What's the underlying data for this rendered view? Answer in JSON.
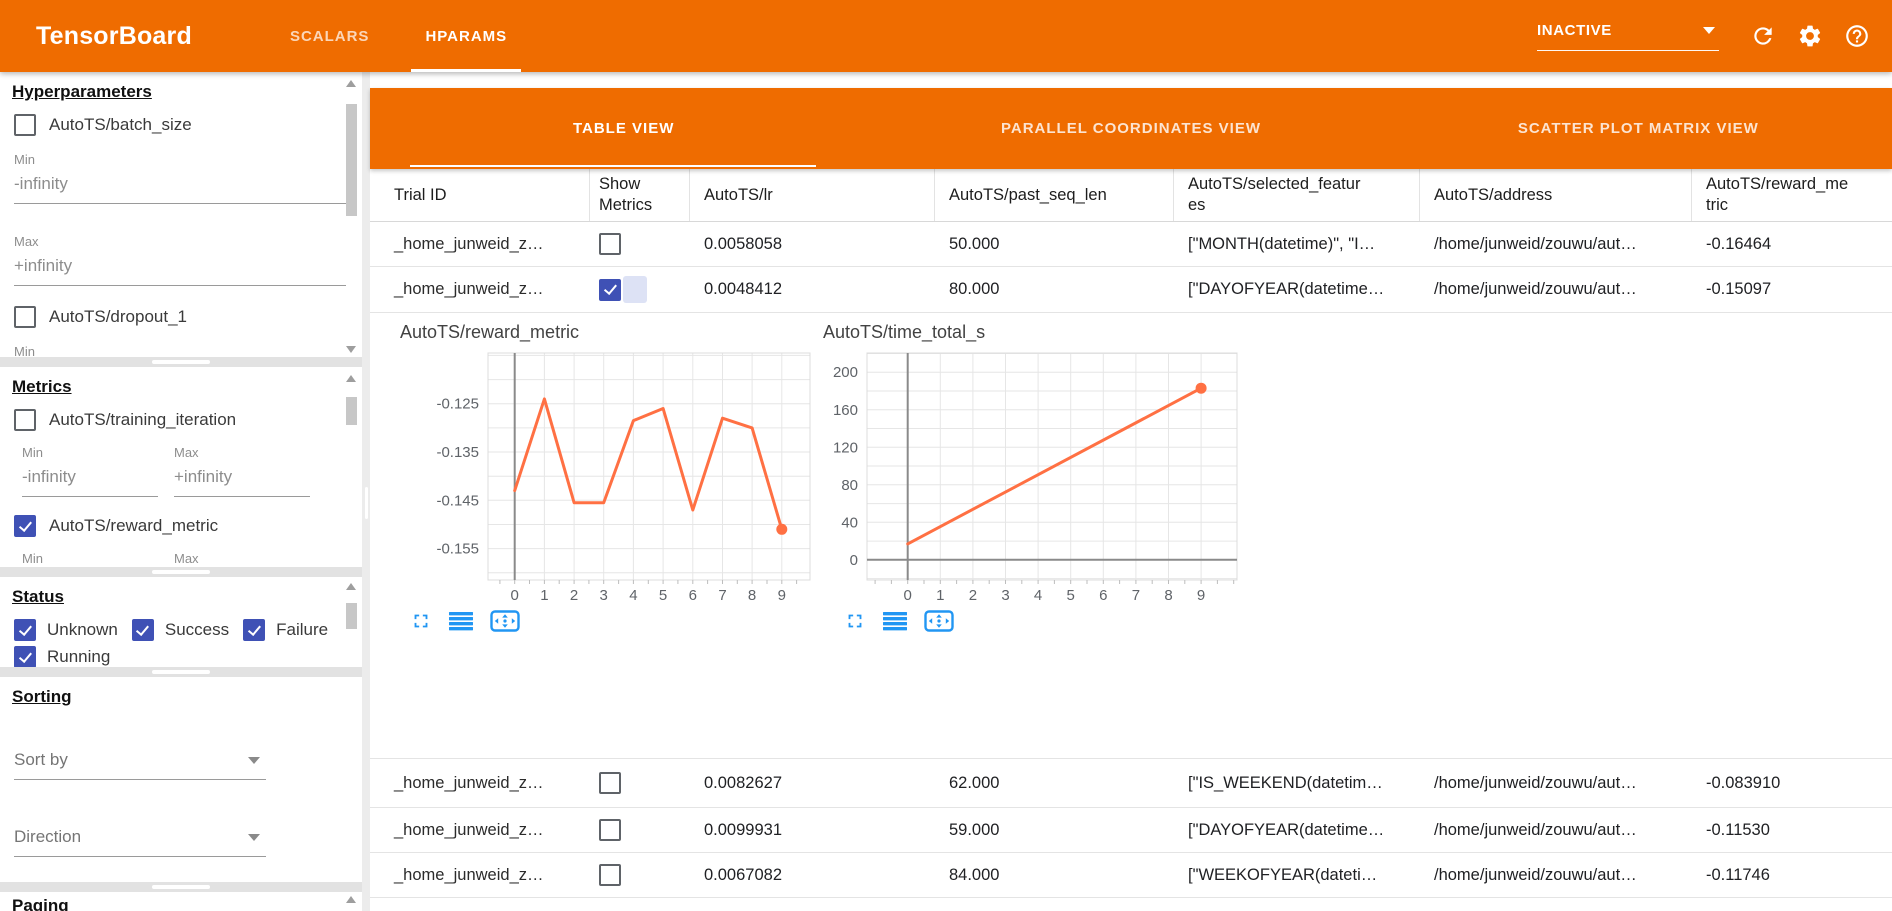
{
  "app": {
    "title": "TensorBoard",
    "nav_tabs": [
      {
        "label": "SCALARS",
        "active": false
      },
      {
        "label": "HPARAMS",
        "active": true
      }
    ],
    "status_dropdown": {
      "value": "INACTIVE"
    }
  },
  "sidebar": {
    "sections": [
      {
        "heading": "Hyperparameters",
        "params": [
          {
            "label": "AutoTS/batch_size",
            "checked": false,
            "min": {
              "label": "Min",
              "value": "-infinity"
            },
            "max": {
              "label": "Max",
              "value": "+infinity"
            }
          },
          {
            "label": "AutoTS/dropout_1",
            "checked": false,
            "min": {
              "label": "Min",
              "value": ""
            }
          }
        ]
      },
      {
        "heading": "Metrics",
        "metrics": [
          {
            "label": "AutoTS/training_iteration",
            "checked": false,
            "min": {
              "label": "Min",
              "value": "-infinity"
            },
            "max": {
              "label": "Max",
              "value": "+infinity"
            }
          },
          {
            "label": "AutoTS/reward_metric",
            "checked": true,
            "min": {
              "label": "Min",
              "value": ""
            },
            "max": {
              "label": "Max",
              "value": ""
            }
          }
        ]
      },
      {
        "heading": "Status",
        "options": [
          {
            "label": "Unknown",
            "checked": true
          },
          {
            "label": "Success",
            "checked": true
          },
          {
            "label": "Failure",
            "checked": true
          },
          {
            "label": "Running",
            "checked": true
          }
        ]
      },
      {
        "heading": "Sorting",
        "selects": [
          {
            "placeholder": "Sort by"
          },
          {
            "placeholder": "Direction"
          }
        ]
      },
      {
        "heading": "Paging"
      }
    ]
  },
  "main": {
    "view_tabs": [
      {
        "label": "TABLE VIEW",
        "active": true
      },
      {
        "label": "PARALLEL COORDINATES VIEW",
        "active": false
      },
      {
        "label": "SCATTER PLOT MATRIX VIEW",
        "active": false
      }
    ],
    "table": {
      "columns": [
        "Trial ID",
        "Show Metrics",
        "AutoTS/lr",
        "AutoTS/past_seq_len",
        "AutoTS/selected_features",
        "AutoTS/address",
        "AutoTS/reward_metric"
      ],
      "rows": [
        {
          "trial_id": "_home_junweid_z…",
          "show_metrics": false,
          "lr": "0.0058058",
          "past_seq_len": "50.000",
          "selected_features": "[\"MONTH(datetime)\", \"I…",
          "address": "/home/junweid/zouwu/aut…",
          "reward_metric": "-0.16464"
        },
        {
          "trial_id": "_home_junweid_z…",
          "show_metrics": true,
          "lr": "0.0048412",
          "past_seq_len": "80.000",
          "selected_features": "[\"DAYOFYEAR(datetime…",
          "address": "/home/junweid/zouwu/aut…",
          "reward_metric": "-0.15097"
        },
        {
          "trial_id": "_home_junweid_z…",
          "show_metrics": false,
          "lr": "0.0082627",
          "past_seq_len": "62.000",
          "selected_features": "[\"IS_WEEKEND(datetim…",
          "address": "/home/junweid/zouwu/aut…",
          "reward_metric": "-0.083910"
        },
        {
          "trial_id": "_home_junweid_z…",
          "show_metrics": false,
          "lr": "0.0099931",
          "past_seq_len": "59.000",
          "selected_features": "[\"DAYOFYEAR(datetime…",
          "address": "/home/junweid/zouwu/aut…",
          "reward_metric": "-0.11530"
        },
        {
          "trial_id": "_home_junweid_z…",
          "show_metrics": false,
          "lr": "0.0067082",
          "past_seq_len": "84.000",
          "selected_features": "[\"WEEKOFYEAR(dateti…",
          "address": "/home/junweid/zouwu/aut…",
          "reward_metric": "-0.11746"
        }
      ]
    }
  },
  "chart_data": [
    {
      "type": "line",
      "title": "AutoTS/reward_metric",
      "x": [
        0,
        1,
        2,
        3,
        4,
        5,
        6,
        7,
        8,
        9
      ],
      "y": [
        -0.143,
        -0.124,
        -0.1455,
        -0.1455,
        -0.1285,
        -0.126,
        -0.147,
        -0.128,
        -0.13,
        -0.151
      ],
      "xlabel": "",
      "ylabel": "",
      "xlim": [
        -0.9,
        9.95
      ],
      "ylim": [
        -0.1615,
        -0.1145
      ],
      "xticks": [
        0,
        1,
        2,
        3,
        4,
        5,
        6,
        7,
        8,
        9
      ],
      "ygrid_step": 0.005,
      "ytick_labels": [
        {
          "value": -0.125,
          "text": "-0.125"
        },
        {
          "value": -0.135,
          "text": "-0.135"
        },
        {
          "value": -0.145,
          "text": "-0.145"
        },
        {
          "value": -0.155,
          "text": "-0.155"
        }
      ],
      "grid": true,
      "legend": "none",
      "line_color": "#ff7043",
      "marker": "last-point",
      "zero_axis": {
        "x": true,
        "y": false
      }
    },
    {
      "type": "line",
      "title": "AutoTS/time_total_s",
      "x": [
        0,
        9
      ],
      "y": [
        17,
        183
      ],
      "xlabel": "",
      "ylabel": "",
      "xlim": [
        -1.25,
        10.1
      ],
      "ylim": [
        -21.5,
        220.5
      ],
      "xticks": [
        0,
        1,
        2,
        3,
        4,
        5,
        6,
        7,
        8,
        9
      ],
      "ygrid_step": 20,
      "ytick_labels": [
        {
          "value": 0,
          "text": "0"
        },
        {
          "value": 40,
          "text": "40"
        },
        {
          "value": 80,
          "text": "80"
        },
        {
          "value": 120,
          "text": "120"
        },
        {
          "value": 160,
          "text": "160"
        },
        {
          "value": 200,
          "text": "200"
        }
      ],
      "grid": true,
      "legend": "none",
      "line_color": "#ff7043",
      "marker": "last-point",
      "zero_axis": {
        "x": true,
        "y": true
      }
    }
  ],
  "chart_toolbar_icons": [
    "fullscreen-icon",
    "data-lines-icon",
    "pan-icon"
  ],
  "colors": {
    "header_orange": "#ef6c00",
    "checkbox_blue": "#3f51b5",
    "chart_line_orange": "#ff7043",
    "toolbar_icon_blue": "#2196f3"
  }
}
